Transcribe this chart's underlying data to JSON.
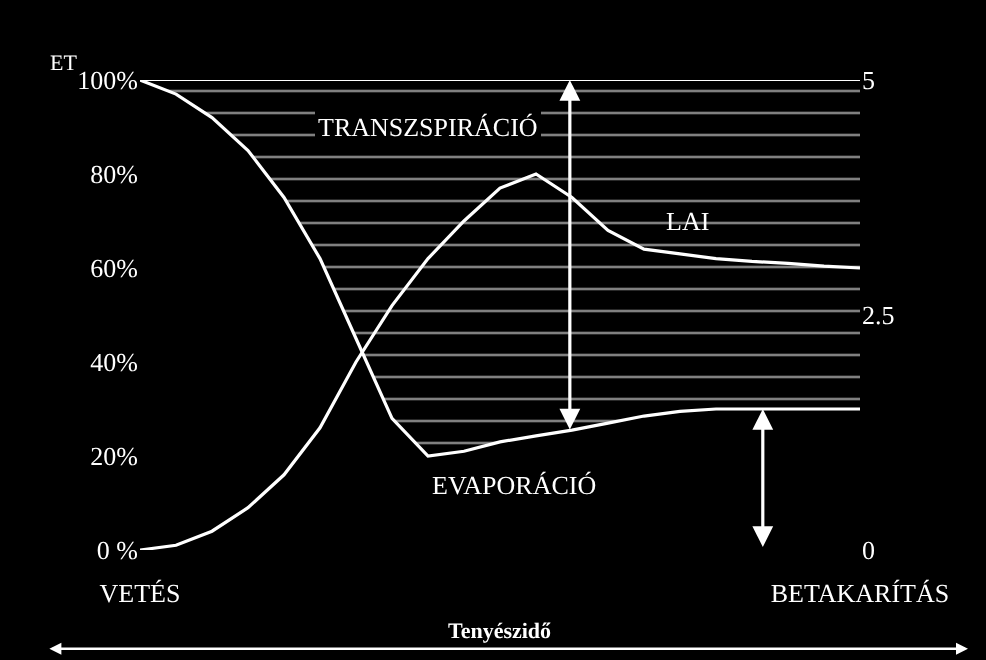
{
  "chart_data": {
    "type": "line",
    "ylabel": "ET",
    "xlabel": "Tenyészidő",
    "stacked": true,
    "categories": [
      "VETÉS",
      null,
      null,
      null,
      null,
      null,
      null,
      null,
      null,
      null,
      null,
      null,
      null,
      null,
      null,
      null,
      null,
      null,
      null,
      null,
      "BETAKARÍTÁS"
    ],
    "ylim": [
      0,
      100
    ],
    "yticks": [
      {
        "value": 0,
        "label": "0 %"
      },
      {
        "value": 20,
        "label": "20%"
      },
      {
        "value": 40,
        "label": "40%"
      },
      {
        "value": 60,
        "label": "60%"
      },
      {
        "value": 80,
        "label": "80%"
      },
      {
        "value": 100,
        "label": "100%"
      }
    ],
    "y2lim": [
      0,
      5
    ],
    "y2ticks": [
      0,
      2.5,
      5
    ],
    "series": [
      {
        "type": "area",
        "color": "#ffffff",
        "values": [
          100,
          97,
          92,
          85,
          75,
          62,
          45,
          28,
          20,
          21,
          23,
          24.3,
          25.5,
          27,
          28.5,
          29.5,
          30,
          30,
          30,
          30,
          30
        ]
      },
      {
        "type": "area",
        "color": "#ffffff",
        "values": [
          0,
          3,
          8,
          15,
          25,
          38,
          55,
          72,
          80,
          79,
          77,
          75.7,
          74.5,
          73,
          71.5,
          70.5,
          70,
          70,
          70,
          70,
          70
        ]
      },
      {
        "color": "#ffffff",
        "axis": "y2",
        "values": [
          0,
          0.05,
          0.2,
          0.45,
          0.8,
          1.3,
          2.0,
          2.6,
          3.1,
          3.5,
          3.85,
          4.0,
          3.75,
          3.4,
          3.2,
          3.15,
          3.1,
          3.07,
          3.05,
          3.02,
          3.0
        ]
      }
    ],
    "annotations": [
      "TRANSZSPIRÁCIÓ",
      "LAI",
      "EVAPORÁCIÓ"
    ]
  }
}
